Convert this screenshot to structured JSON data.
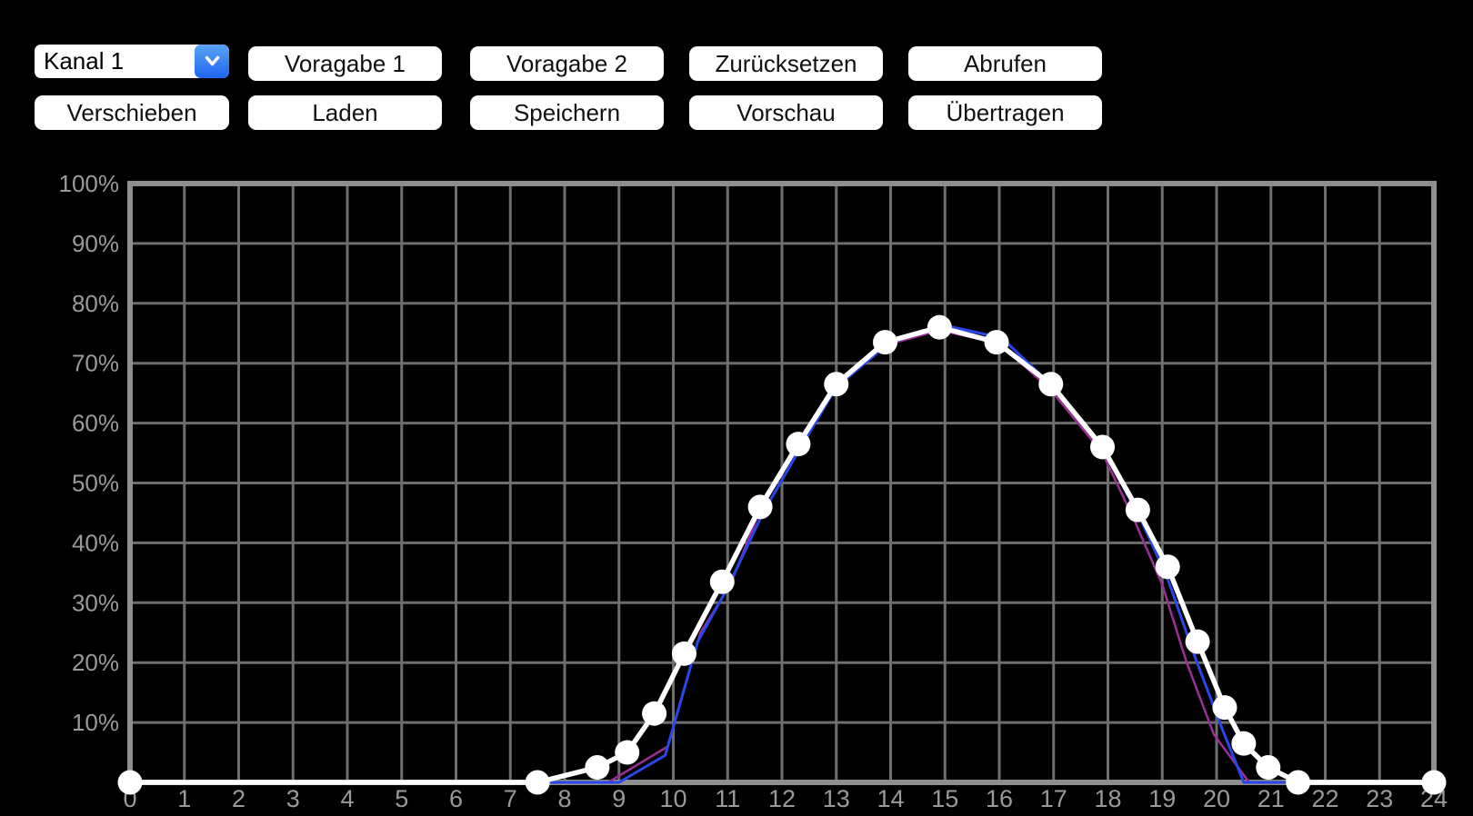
{
  "controls": {
    "channel_select": {
      "value": "Kanal 1",
      "icon": "chevron-down"
    },
    "buttons_row1": [
      "Voragabe 1",
      "Voragabe 2",
      "Zurücksetzen",
      "Abrufen"
    ],
    "buttons_row2": [
      "Verschieben",
      "Laden",
      "Speichern",
      "Vorschau",
      "Übertragen"
    ]
  },
  "colors": {
    "background": "#000000",
    "grid": "#6e6e6e",
    "axis_border": "#8e8e8e",
    "tick_label": "#9a9a9a",
    "button_bg": "#ffffff",
    "button_text": "#111111",
    "select_cap_top": "#59a4f9",
    "select_cap_bottom": "#1f65ee",
    "marker": "#ffffff"
  },
  "chart_data": {
    "type": "line",
    "title": "",
    "xlim": [
      0,
      24
    ],
    "ylim": [
      0,
      100
    ],
    "grid": true,
    "legend": false,
    "x_ticks": [
      0,
      1,
      2,
      3,
      4,
      5,
      6,
      7,
      8,
      9,
      10,
      11,
      12,
      13,
      14,
      15,
      16,
      17,
      18,
      19,
      20,
      21,
      22,
      23,
      24
    ],
    "y_ticks": [
      10,
      20,
      30,
      40,
      50,
      60,
      70,
      80,
      90,
      100
    ],
    "y_tick_labels": [
      "10%",
      "20%",
      "30%",
      "40%",
      "50%",
      "60%",
      "70%",
      "80%",
      "90%",
      "100%"
    ],
    "series": [
      {
        "name": "preset-magenta",
        "color": "#9c2f97",
        "width": 2.5,
        "markers": false,
        "points": [
          [
            0,
            0
          ],
          [
            8.8,
            0
          ],
          [
            9.9,
            6
          ],
          [
            10.5,
            25
          ],
          [
            11.05,
            33
          ],
          [
            11.6,
            45.5
          ],
          [
            12.3,
            56
          ],
          [
            13,
            66.2
          ],
          [
            13.9,
            73
          ],
          [
            14.9,
            75.5
          ],
          [
            16,
            73.3
          ],
          [
            16.95,
            65.5
          ],
          [
            17.9,
            55
          ],
          [
            18.5,
            43.5
          ],
          [
            19,
            33
          ],
          [
            19.45,
            20
          ],
          [
            19.95,
            8
          ],
          [
            20.6,
            0
          ],
          [
            21.35,
            0
          ]
        ]
      },
      {
        "name": "preset-blue",
        "color": "#2946ea",
        "width": 3,
        "markers": false,
        "points": [
          [
            0,
            0
          ],
          [
            9,
            0
          ],
          [
            9.85,
            4.5
          ],
          [
            10.45,
            23.5
          ],
          [
            11,
            32.5
          ],
          [
            11.65,
            45
          ],
          [
            12.35,
            56
          ],
          [
            13,
            66
          ],
          [
            13.95,
            73.2
          ],
          [
            14.95,
            76.4
          ],
          [
            16.05,
            74.2
          ],
          [
            17,
            66
          ],
          [
            17.95,
            55
          ],
          [
            18.6,
            44
          ],
          [
            19.1,
            34
          ],
          [
            19.6,
            21
          ],
          [
            20.1,
            9
          ],
          [
            20.5,
            0
          ],
          [
            21.4,
            0
          ]
        ]
      },
      {
        "name": "current-curve",
        "color": "#ffffff",
        "width": 5.5,
        "markers": true,
        "points": [
          [
            0,
            0
          ],
          [
            7.5,
            0
          ],
          [
            8.6,
            2.5
          ],
          [
            9.15,
            5
          ],
          [
            9.65,
            11.5
          ],
          [
            10.2,
            21.5
          ],
          [
            10.9,
            33.5
          ],
          [
            11.6,
            46
          ],
          [
            12.3,
            56.5
          ],
          [
            13,
            66.5
          ],
          [
            13.9,
            73.5
          ],
          [
            14.9,
            76
          ],
          [
            15.95,
            73.5
          ],
          [
            16.95,
            66.5
          ],
          [
            17.9,
            56
          ],
          [
            18.55,
            45.5
          ],
          [
            19.1,
            36
          ],
          [
            19.65,
            23.5
          ],
          [
            20.15,
            12.5
          ],
          [
            20.5,
            6.5
          ],
          [
            20.95,
            2.5
          ],
          [
            21.5,
            0
          ],
          [
            24,
            0
          ]
        ]
      }
    ]
  }
}
